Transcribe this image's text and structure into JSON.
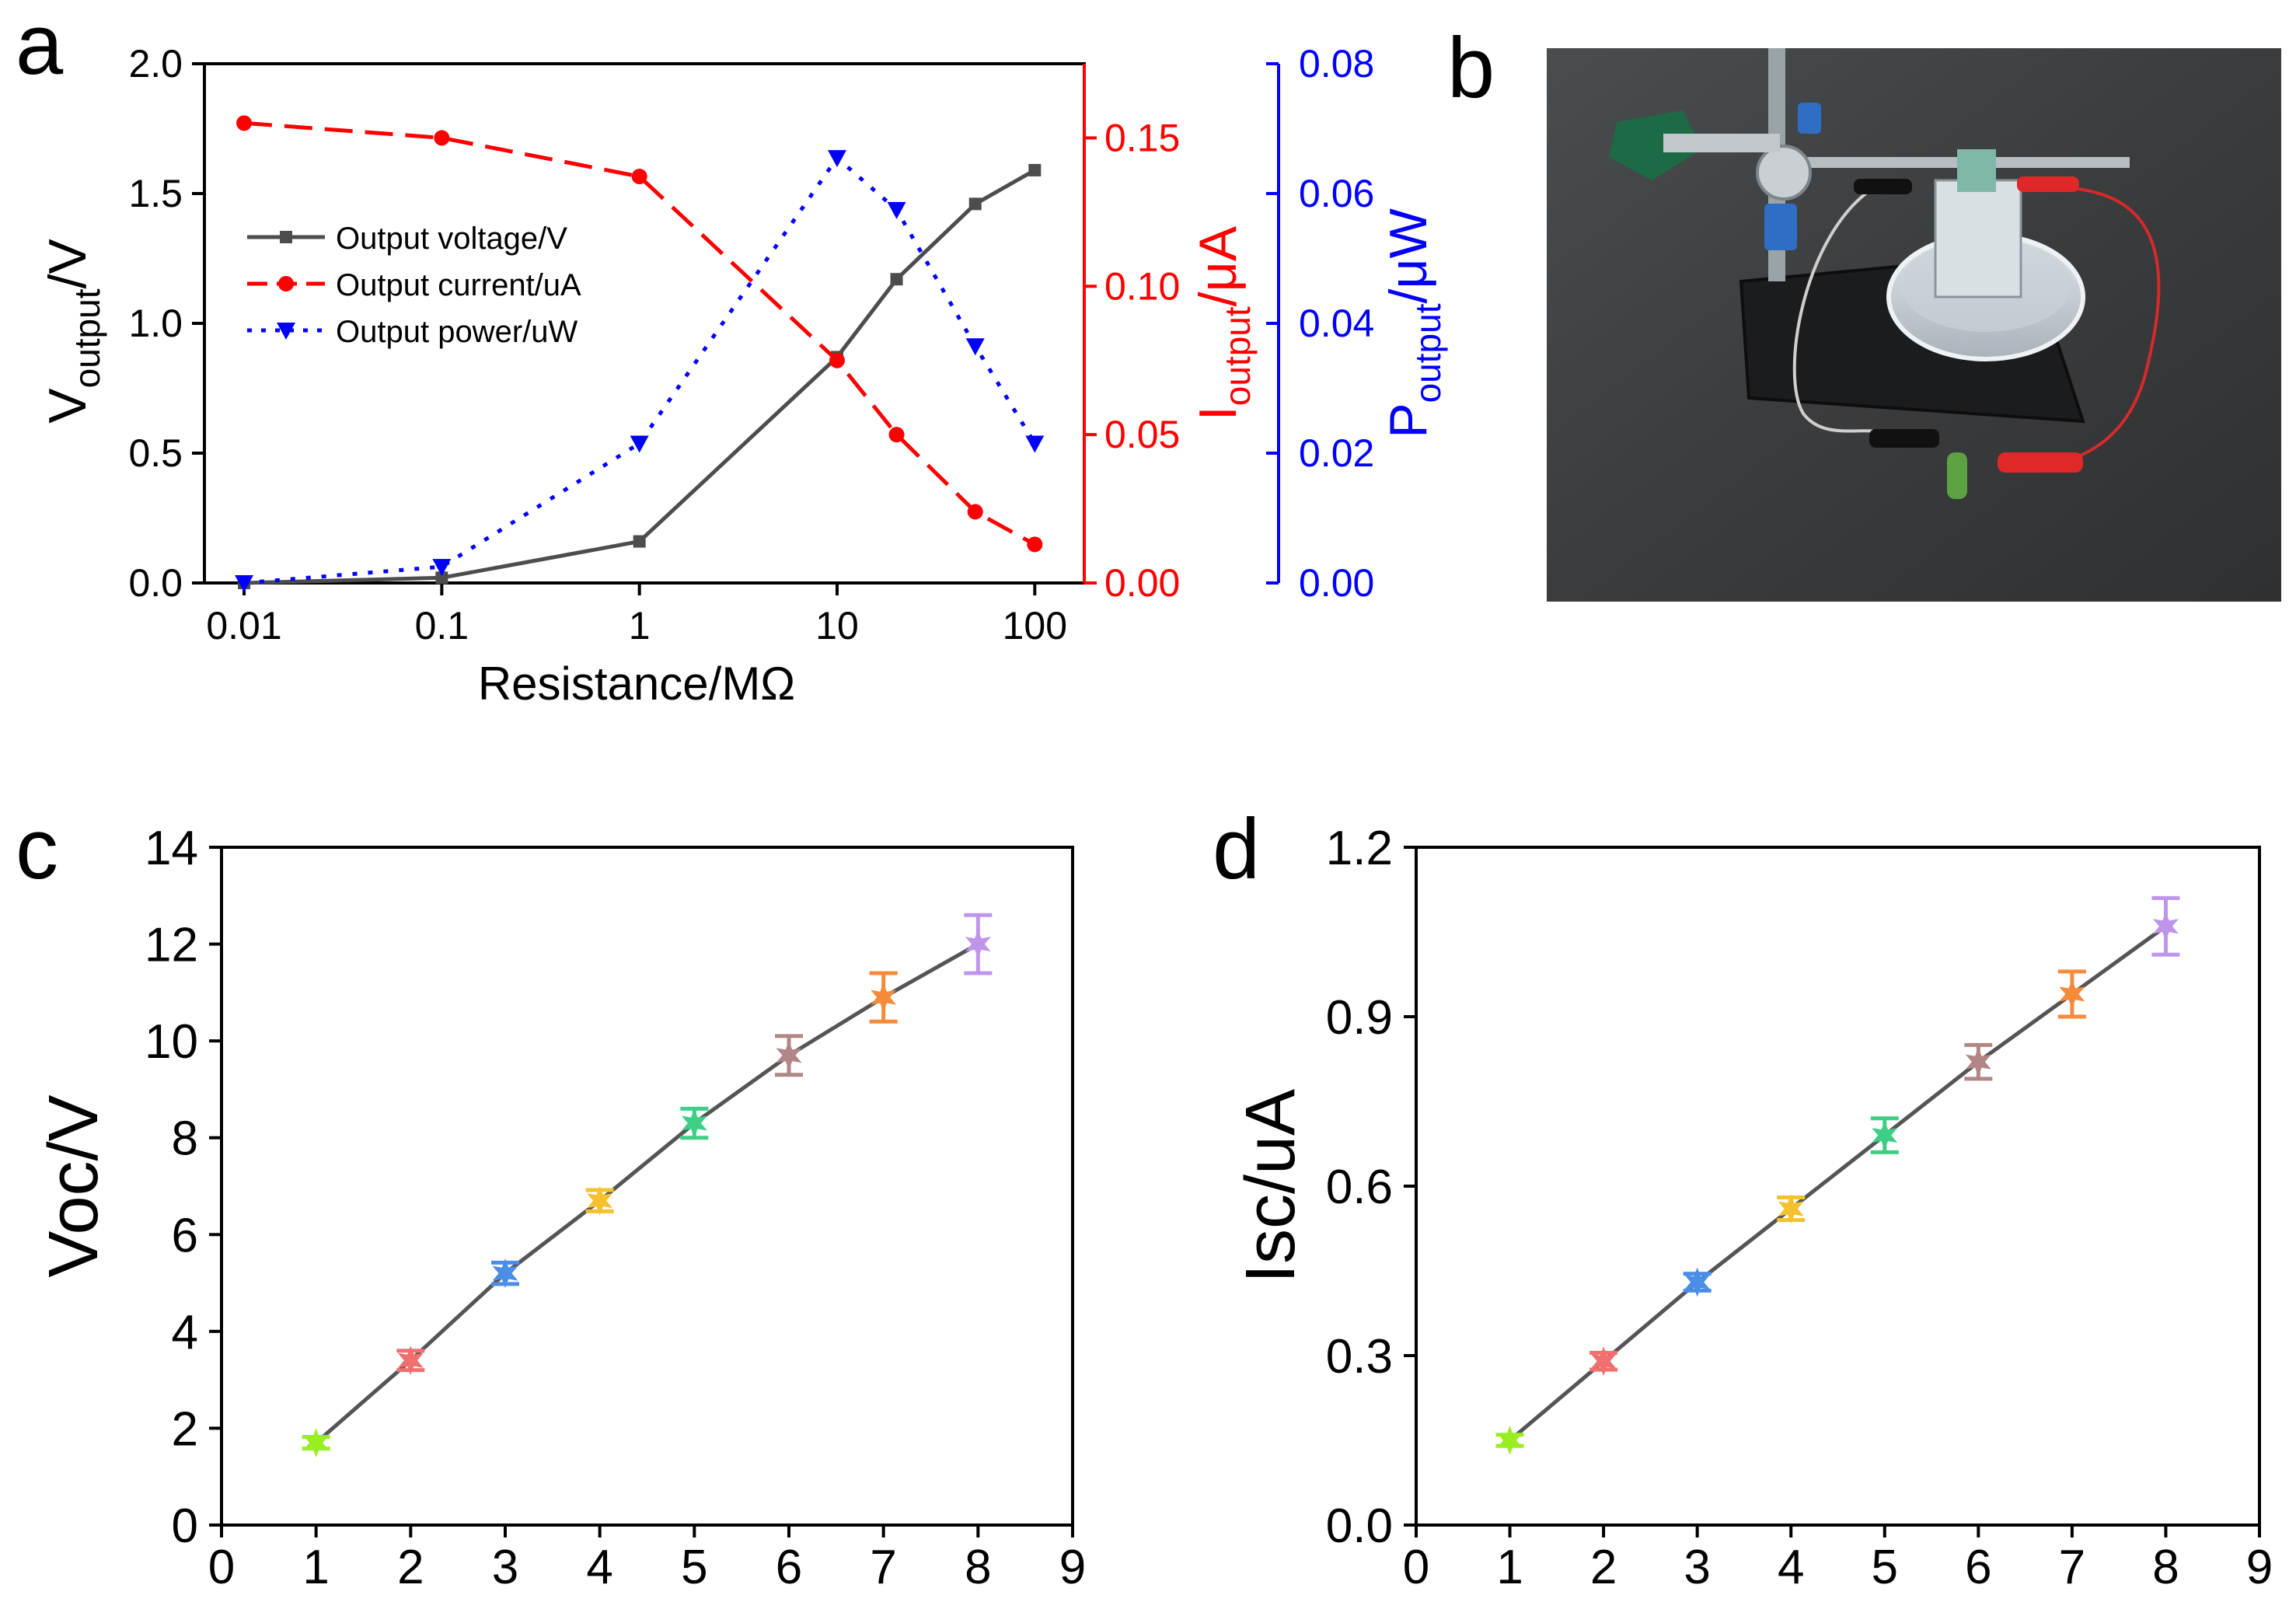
{
  "panels": {
    "a": {
      "letter": "a",
      "chart_data": {
        "type": "line",
        "title": "",
        "xlabel": "Resistance/MΩ",
        "xscale": "log",
        "xlim": [
          0.0063,
          178
        ],
        "xticks": [
          0.01,
          0.1,
          1,
          10,
          100
        ],
        "xtick_labels": [
          "0.01",
          "0.1",
          "1",
          "10",
          "100"
        ],
        "legend_position": "upper-left",
        "axes": {
          "left": {
            "label_main": "V",
            "label_sub": "output",
            "label_tail": "/V",
            "color": "#000000",
            "ylim": [
              0,
              2.0
            ],
            "ticks": [
              0,
              0.5,
              1.0,
              1.5,
              2.0
            ],
            "tick_labels": [
              "0.0",
              "0.5",
              "1.0",
              "1.5",
              "2.0"
            ]
          },
          "right1": {
            "label_main": "I",
            "label_sub": "output",
            "label_tail": "/μA",
            "color": "#ff0000",
            "ylim": [
              0,
              0.175
            ],
            "ticks": [
              0,
              0.05,
              0.1,
              0.15
            ],
            "tick_labels": [
              "0.00",
              "0.05",
              "0.10",
              "0.15"
            ]
          },
          "right2": {
            "label_main": "P",
            "label_sub": "output",
            "label_tail": "/μW",
            "color": "#0000ff",
            "ylim": [
              0,
              0.08
            ],
            "ticks": [
              0,
              0.02,
              0.04,
              0.06,
              0.08
            ],
            "tick_labels": [
              "0.00",
              "0.02",
              "0.04",
              "0.06",
              "0.08"
            ]
          }
        },
        "series": [
          {
            "name": "Output voltage/V",
            "axis": "left",
            "color": "#4d4d4d",
            "line_style": "solid",
            "marker": "square",
            "x": [
              0.01,
              0.1,
              1,
              10,
              20,
              50,
              100
            ],
            "values": [
              0.0,
              0.02,
              0.16,
              0.87,
              1.17,
              1.46,
              1.59
            ]
          },
          {
            "name": "Output current/uA",
            "axis": "right1",
            "color": "#ff0000",
            "line_style": "dashed",
            "marker": "circle",
            "x": [
              0.01,
              0.1,
              1,
              10,
              20,
              50,
              100
            ],
            "values": [
              0.155,
              0.15,
              0.137,
              0.075,
              0.05,
              0.024,
              0.013
            ]
          },
          {
            "name": "Output power/uW",
            "axis": "right2",
            "color": "#0000ff",
            "line_style": "dotted",
            "marker": "triangle-down",
            "x": [
              0.01,
              0.1,
              1,
              10,
              20,
              50,
              100
            ],
            "values": [
              0.0,
              0.0025,
              0.0215,
              0.0655,
              0.0575,
              0.0365,
              0.0215
            ]
          }
        ]
      }
    },
    "b": {
      "letter": "b",
      "photo_icon": "experiment-setup-photo"
    },
    "c": {
      "letter": "c",
      "chart_data": {
        "type": "line",
        "title": "",
        "xlabel": "",
        "ylabel": "Voc/V",
        "xlim": [
          0,
          9
        ],
        "ylim": [
          0,
          14
        ],
        "xticks": [
          0,
          1,
          2,
          3,
          4,
          5,
          6,
          7,
          8,
          9
        ],
        "yticks": [
          0,
          2,
          4,
          6,
          8,
          10,
          12,
          14
        ],
        "line_color": "#555555",
        "marker": "star",
        "x": [
          1,
          2,
          3,
          4,
          5,
          6,
          7,
          8
        ],
        "values": [
          1.7,
          3.4,
          5.2,
          6.7,
          8.3,
          9.7,
          10.9,
          12.0
        ],
        "errors": [
          0.12,
          0.2,
          0.22,
          0.22,
          0.3,
          0.4,
          0.5,
          0.6
        ],
        "point_colors": [
          "#99ee22",
          "#f07070",
          "#4a8ee8",
          "#f5c12c",
          "#3ecf84",
          "#b08686",
          "#f58a3a",
          "#bf95ec"
        ]
      }
    },
    "d": {
      "letter": "d",
      "chart_data": {
        "type": "line",
        "title": "",
        "xlabel": "",
        "ylabel": "Isc/uA",
        "xlim": [
          0,
          9
        ],
        "ylim": [
          0,
          1.2
        ],
        "xticks": [
          0,
          1,
          2,
          3,
          4,
          5,
          6,
          7,
          8,
          9
        ],
        "yticks": [
          0.0,
          0.3,
          0.6,
          0.9,
          1.2
        ],
        "ytick_labels": [
          "0.0",
          "0.3",
          "0.6",
          "0.9",
          "1.2"
        ],
        "line_color": "#555555",
        "marker": "star",
        "x": [
          1,
          2,
          3,
          4,
          5,
          6,
          7,
          8
        ],
        "values": [
          0.15,
          0.29,
          0.43,
          0.56,
          0.69,
          0.82,
          0.94,
          1.06
        ],
        "errors": [
          0.01,
          0.015,
          0.015,
          0.02,
          0.03,
          0.03,
          0.04,
          0.05
        ],
        "point_colors": [
          "#99ee22",
          "#f07070",
          "#4a8ee8",
          "#f5c12c",
          "#3ecf84",
          "#b08686",
          "#f58a3a",
          "#bf95ec"
        ]
      }
    }
  }
}
